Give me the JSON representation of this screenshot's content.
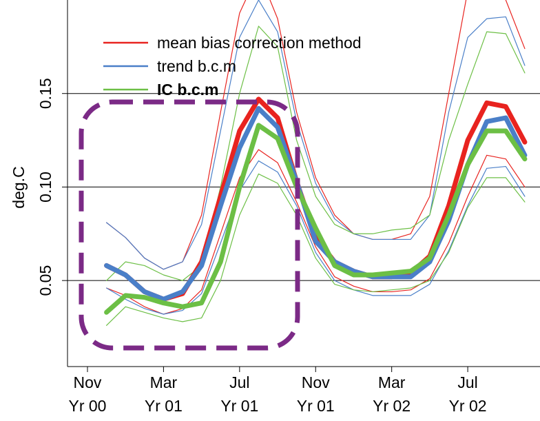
{
  "chart_data": {
    "type": "line",
    "y_label": "deg.C",
    "x": [
      1,
      2,
      3,
      4,
      5,
      6,
      7,
      8,
      9,
      10,
      11,
      12,
      13,
      14,
      15,
      16,
      17,
      18,
      19,
      20,
      21,
      22,
      23
    ],
    "xlim": [
      -1.05,
      23.8
    ],
    "xticks": [
      {
        "value": 0,
        "label": "Nov\nYr 00"
      },
      {
        "value": 4,
        "label": "Mar\nYr 01"
      },
      {
        "value": 8,
        "label": "Jul\nYr 01"
      },
      {
        "value": 12,
        "label": "Nov\nYr 01"
      },
      {
        "value": 16,
        "label": "Mar\nYr 02"
      },
      {
        "value": 20,
        "label": "Jul\nYr 02"
      }
    ],
    "ylim": [
      0.004,
      0.2
    ],
    "yticks": [
      0.05,
      {
        "value": 0.1,
        "label": "0.10"
      },
      0.15
    ],
    "grid": true,
    "series": [
      {
        "name": "mean bias correction method",
        "color": "#e8231f",
        "values": [
          0.058,
          0.053,
          0.044,
          0.04,
          0.043,
          0.06,
          0.095,
          0.13,
          0.147,
          0.137,
          0.103,
          0.073,
          0.06,
          0.055,
          0.052,
          0.052,
          0.054,
          0.063,
          0.09,
          0.125,
          0.145,
          0.143,
          0.124
        ],
        "upper": [
          0.081,
          0.073,
          0.062,
          0.056,
          0.06,
          0.085,
          0.14,
          0.193,
          0.215,
          0.19,
          0.14,
          0.105,
          0.085,
          0.075,
          0.072,
          0.072,
          0.075,
          0.095,
          0.15,
          0.205,
          0.215,
          0.2,
          0.174
        ],
        "lower": [
          0.046,
          0.042,
          0.036,
          0.032,
          0.035,
          0.045,
          0.075,
          0.105,
          0.12,
          0.113,
          0.092,
          0.068,
          0.052,
          0.047,
          0.044,
          0.044,
          0.045,
          0.051,
          0.07,
          0.095,
          0.117,
          0.115,
          0.1
        ]
      },
      {
        "name": "trend b.c.m",
        "color": "#4a7fc8",
        "values": [
          0.058,
          0.053,
          0.044,
          0.04,
          0.044,
          0.058,
          0.09,
          0.121,
          0.142,
          0.132,
          0.103,
          0.071,
          0.06,
          0.055,
          0.052,
          0.052,
          0.052,
          0.06,
          0.082,
          0.112,
          0.135,
          0.137,
          0.117
        ],
        "upper": [
          0.081,
          0.073,
          0.062,
          0.056,
          0.06,
          0.08,
          0.13,
          0.18,
          0.2,
          0.183,
          0.135,
          0.102,
          0.083,
          0.075,
          0.072,
          0.072,
          0.072,
          0.085,
          0.14,
          0.18,
          0.19,
          0.191,
          0.165
        ],
        "lower": [
          0.046,
          0.04,
          0.035,
          0.032,
          0.034,
          0.043,
          0.07,
          0.098,
          0.114,
          0.108,
          0.09,
          0.065,
          0.05,
          0.045,
          0.042,
          0.042,
          0.042,
          0.048,
          0.066,
          0.09,
          0.11,
          0.111,
          0.095
        ]
      },
      {
        "name": "IC b.c.m",
        "color": "#6cbf45",
        "values": [
          0.033,
          0.042,
          0.041,
          0.038,
          0.036,
          0.038,
          0.06,
          0.1,
          0.133,
          0.126,
          0.1,
          0.078,
          0.058,
          0.053,
          0.053,
          0.054,
          0.055,
          0.062,
          0.085,
          0.112,
          0.13,
          0.13,
          0.115
        ],
        "upper": [
          0.05,
          0.06,
          0.058,
          0.053,
          0.05,
          0.058,
          0.1,
          0.15,
          0.186,
          0.175,
          0.125,
          0.095,
          0.08,
          0.075,
          0.075,
          0.077,
          0.078,
          0.085,
          0.125,
          0.155,
          0.183,
          0.182,
          0.161
        ],
        "lower": [
          0.026,
          0.036,
          0.033,
          0.03,
          0.028,
          0.03,
          0.05,
          0.085,
          0.107,
          0.102,
          0.085,
          0.062,
          0.048,
          0.045,
          0.044,
          0.045,
          0.046,
          0.05,
          0.065,
          0.089,
          0.105,
          0.105,
          0.092
        ]
      }
    ]
  }
}
